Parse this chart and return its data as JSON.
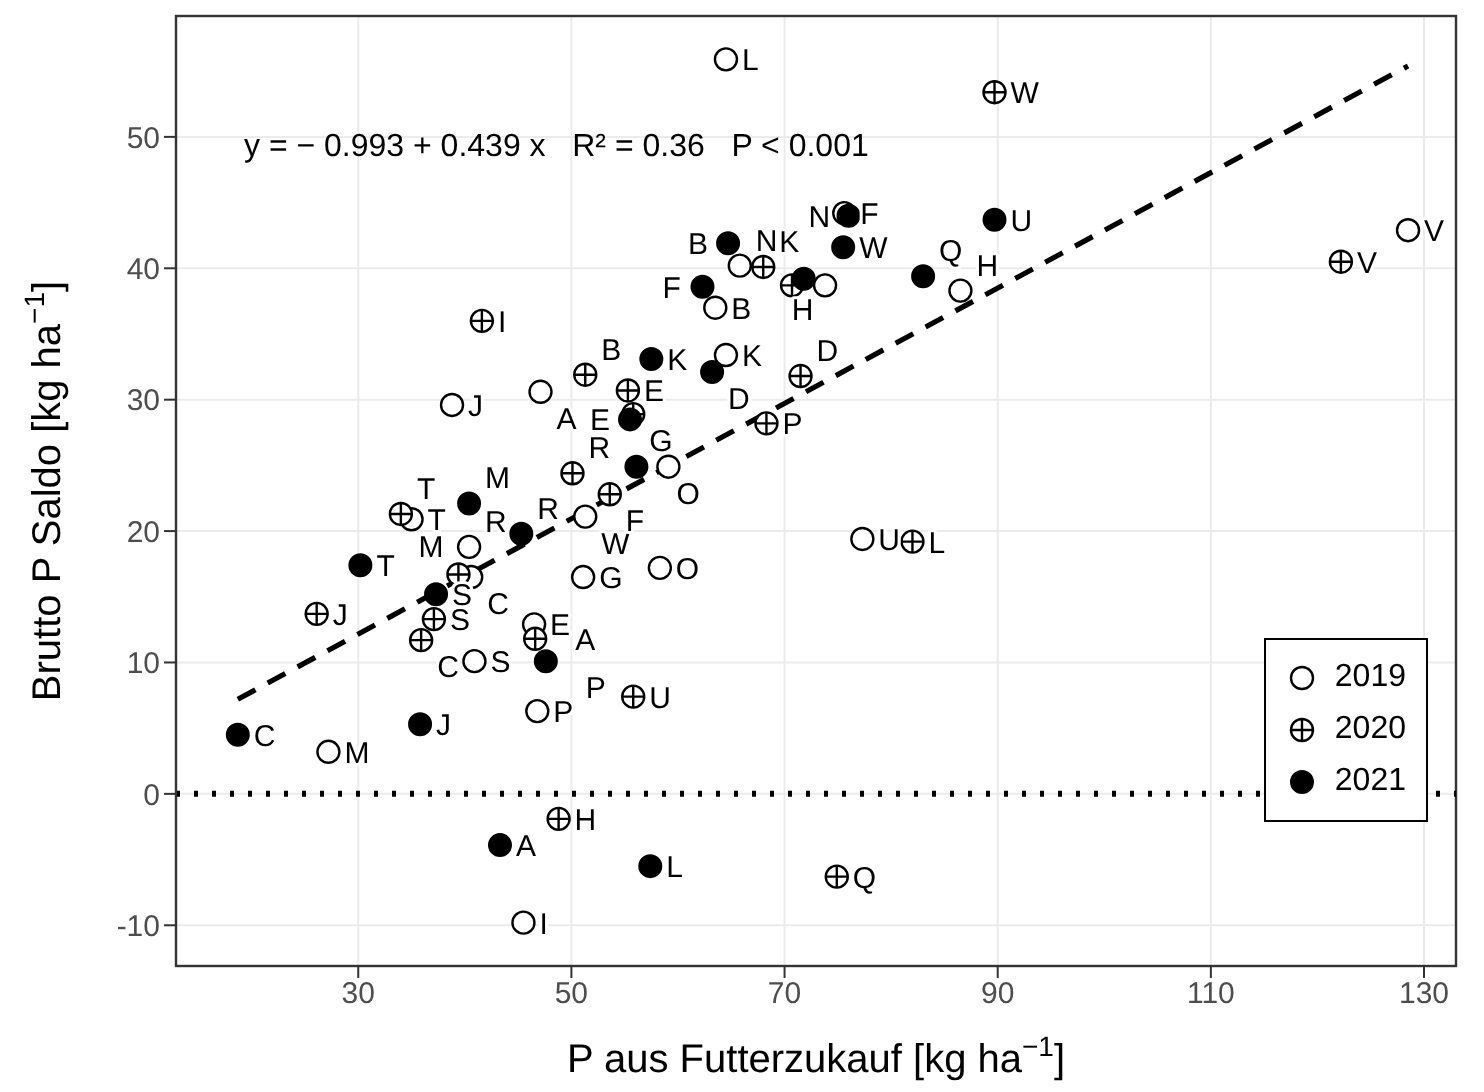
{
  "chart_data": {
    "type": "scatter",
    "xlabel": "P aus Futterzukauf [kg ha$^{−1}$]",
    "ylabel": "Brutto P Saldo [kg ha$^{−1}$]",
    "xlim": [
      12.9,
      133
    ],
    "ylim": [
      -13.1,
      59.2
    ],
    "xticks": [
      30,
      50,
      70,
      90,
      110,
      130
    ],
    "yticks": [
      -10,
      0,
      10,
      20,
      30,
      40,
      50
    ],
    "grid": true,
    "legend": "bottom right",
    "annotations": [
      "y = − 0.993 + 0.439 x   R² = 0.36   P < 0.001"
    ],
    "ref_lines": [
      {
        "axis": "y",
        "value": 0,
        "color": "#000000",
        "line_style": "dotted"
      }
    ],
    "series": [
      {
        "name": "2019",
        "color": "#000000",
        "marker": "circle-open",
        "x": [
          38.8,
          47.1,
          35.0,
          40.4,
          40.6,
          40.9,
          46.5,
          46.8,
          27.2,
          45.5,
          51.1,
          58.3,
          51.3,
          59.1,
          63.5,
          64.5,
          65.8,
          73.8,
          75.6,
          86.5,
          77.3,
          128.5,
          64.5
        ],
        "values": [
          29.6,
          30.6,
          20.9,
          18.8,
          16.5,
          10.1,
          12.9,
          6.3,
          3.2,
          -9.8,
          16.5,
          17.2,
          21.1,
          24.9,
          37.0,
          33.4,
          40.2,
          38.7,
          44.2,
          38.3,
          19.4,
          42.9,
          55.9
        ],
        "value_labels": [
          "J",
          "A",
          "T",
          "R",
          "C",
          "S",
          "E",
          "P",
          "M",
          "I",
          "G",
          "O",
          "W",
          null,
          "B",
          "K",
          "N",
          null,
          "F",
          "H",
          "U",
          "V",
          "L"
        ]
      },
      {
        "name": "2020",
        "color": "#000000",
        "marker": "circle-cross",
        "x": [
          41.6,
          51.3,
          50.1,
          34.0,
          39.4,
          37.1,
          26.1,
          35.9,
          46.6,
          55.8,
          48.8,
          55.3,
          55.8,
          68.3,
          53.6,
          71.5,
          68.0,
          70.7,
          82.0,
          89.7,
          122.2,
          74.9
        ],
        "values": [
          36.0,
          31.9,
          24.4,
          21.3,
          16.7,
          13.3,
          13.7,
          11.7,
          11.8,
          7.4,
          -1.9,
          30.7,
          28.9,
          28.2,
          22.8,
          31.8,
          40.1,
          38.7,
          19.2,
          53.4,
          40.5,
          -6.3
        ],
        "value_labels": [
          "I",
          "B",
          "R",
          "T",
          "M",
          "S",
          "J",
          "C",
          "A",
          "U",
          "H",
          "E",
          "G",
          "P",
          "F",
          "D",
          "K",
          null,
          "L",
          "W",
          "V",
          "Q"
        ]
      },
      {
        "name": "2021",
        "color": "#000000",
        "marker": "circle",
        "x": [
          40.4,
          45.3,
          30.2,
          37.3,
          47.6,
          35.8,
          18.7,
          43.3,
          57.4,
          64.7,
          75.5,
          62.3,
          57.5,
          63.2,
          55.5,
          56.1,
          71.8,
          76.0,
          89.7,
          83.0
        ],
        "values": [
          22.1,
          19.8,
          17.4,
          15.2,
          10.1,
          5.3,
          4.5,
          -3.9,
          -5.5,
          41.9,
          41.6,
          38.6,
          33.1,
          32.1,
          28.5,
          24.9,
          39.2,
          44.0,
          43.7,
          39.4
        ],
        "value_labels": [
          "M",
          "R",
          "T",
          "S",
          "P",
          "J",
          "C",
          "A",
          "L",
          "B",
          "W",
          "F",
          "K",
          "D",
          "E",
          "O",
          "H",
          "N",
          "U",
          "Q"
        ]
      },
      {
        "type": "line",
        "color": "#000000",
        "line_style": "dashed",
        "x": [
          18.7,
          128.5
        ],
        "values": [
          7.2,
          55.4
        ]
      }
    ]
  }
}
